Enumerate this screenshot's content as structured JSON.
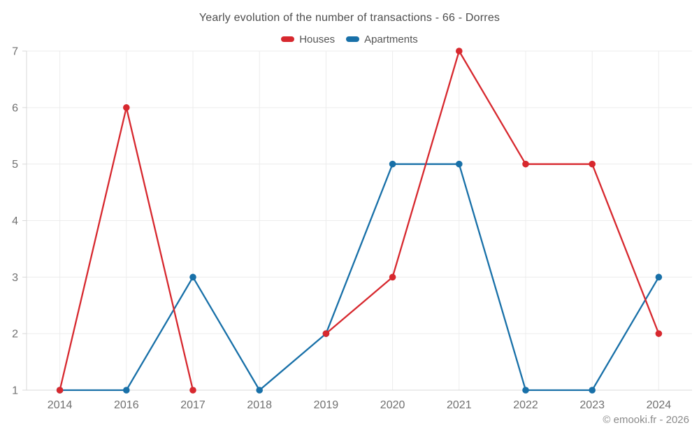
{
  "title": "Yearly evolution of the number of transactions - 66 - Dorres",
  "watermark": "© emooki.fr - 2026",
  "legend": {
    "items": [
      {
        "label": "Houses",
        "color": "#d7282e"
      },
      {
        "label": "Apartments",
        "color": "#1870a8"
      }
    ]
  },
  "colors": {
    "background": "#ffffff",
    "grid": "#ececec",
    "axis": "#d9d9d9",
    "tick_label": "#707070",
    "title_text": "#4d4d4d",
    "legend_text": "#555555",
    "watermark_text": "#8a8a8a",
    "houses": "#d7282e",
    "apartments": "#1870a8"
  },
  "chart_data": {
    "type": "line",
    "title": "Yearly evolution of the number of transactions - 66 - Dorres",
    "categories": [
      "2014",
      "2016",
      "2017",
      "2018",
      "2019",
      "2020",
      "2021",
      "2022",
      "2023",
      "2024"
    ],
    "series": [
      {
        "name": "Houses",
        "color": "#d7282e",
        "values": [
          1,
          6,
          1,
          null,
          2,
          3,
          7,
          5,
          5,
          2
        ]
      },
      {
        "name": "Apartments",
        "color": "#1870a8",
        "values": [
          1,
          1,
          3,
          1,
          2,
          5,
          5,
          1,
          1,
          3
        ]
      }
    ],
    "xlabel": "",
    "ylabel": "",
    "ylim": [
      1,
      7
    ],
    "yticks": [
      1,
      2,
      3,
      4,
      5,
      6,
      7
    ],
    "grid": true,
    "legend_position": "top"
  }
}
